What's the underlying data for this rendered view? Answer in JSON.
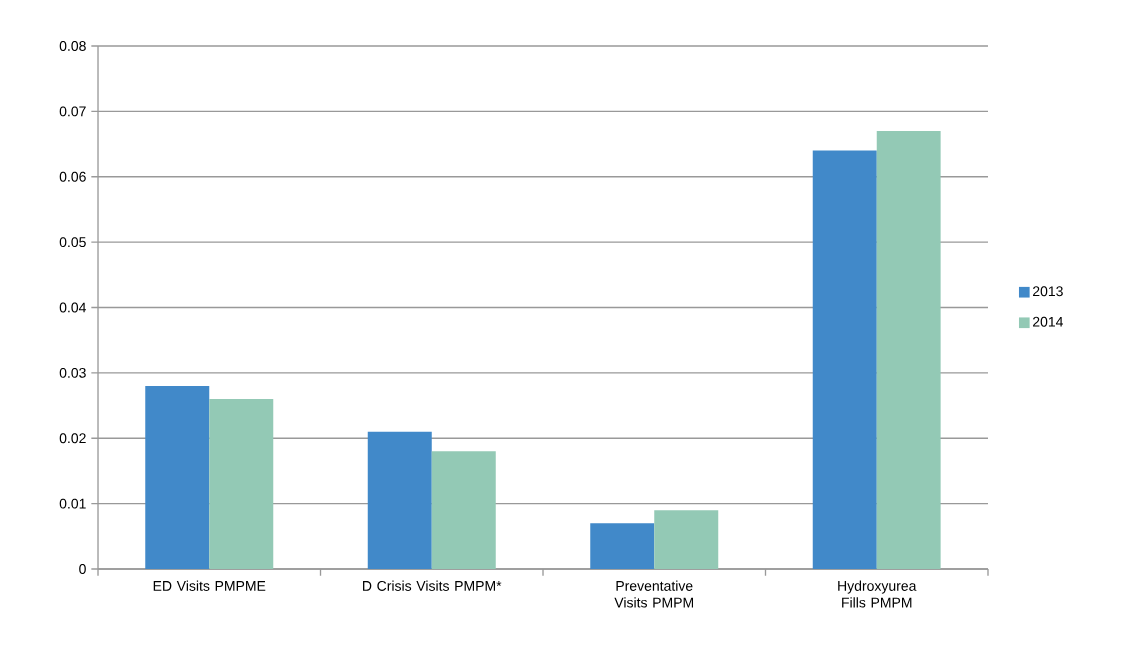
{
  "chart_data": {
    "type": "bar",
    "categories": [
      "ED  Visits PMPME",
      "D Crisis Visits PMPM*",
      "Preventative Visits PMPM",
      "Hydroxyurea Fills PMPM"
    ],
    "series": [
      {
        "name": "2013",
        "color": "#4189c9",
        "values": [
          0.028,
          0.021,
          0.007,
          0.064
        ]
      },
      {
        "name": "2014",
        "color": "#93c9b5",
        "values": [
          0.026,
          0.018,
          0.009,
          0.067
        ]
      }
    ],
    "ylim": [
      0,
      0.08
    ],
    "yticks": [
      0,
      0.01,
      0.02,
      0.03,
      0.04,
      0.05,
      0.06,
      0.07,
      0.08
    ],
    "grid": "y",
    "legend": "right"
  }
}
